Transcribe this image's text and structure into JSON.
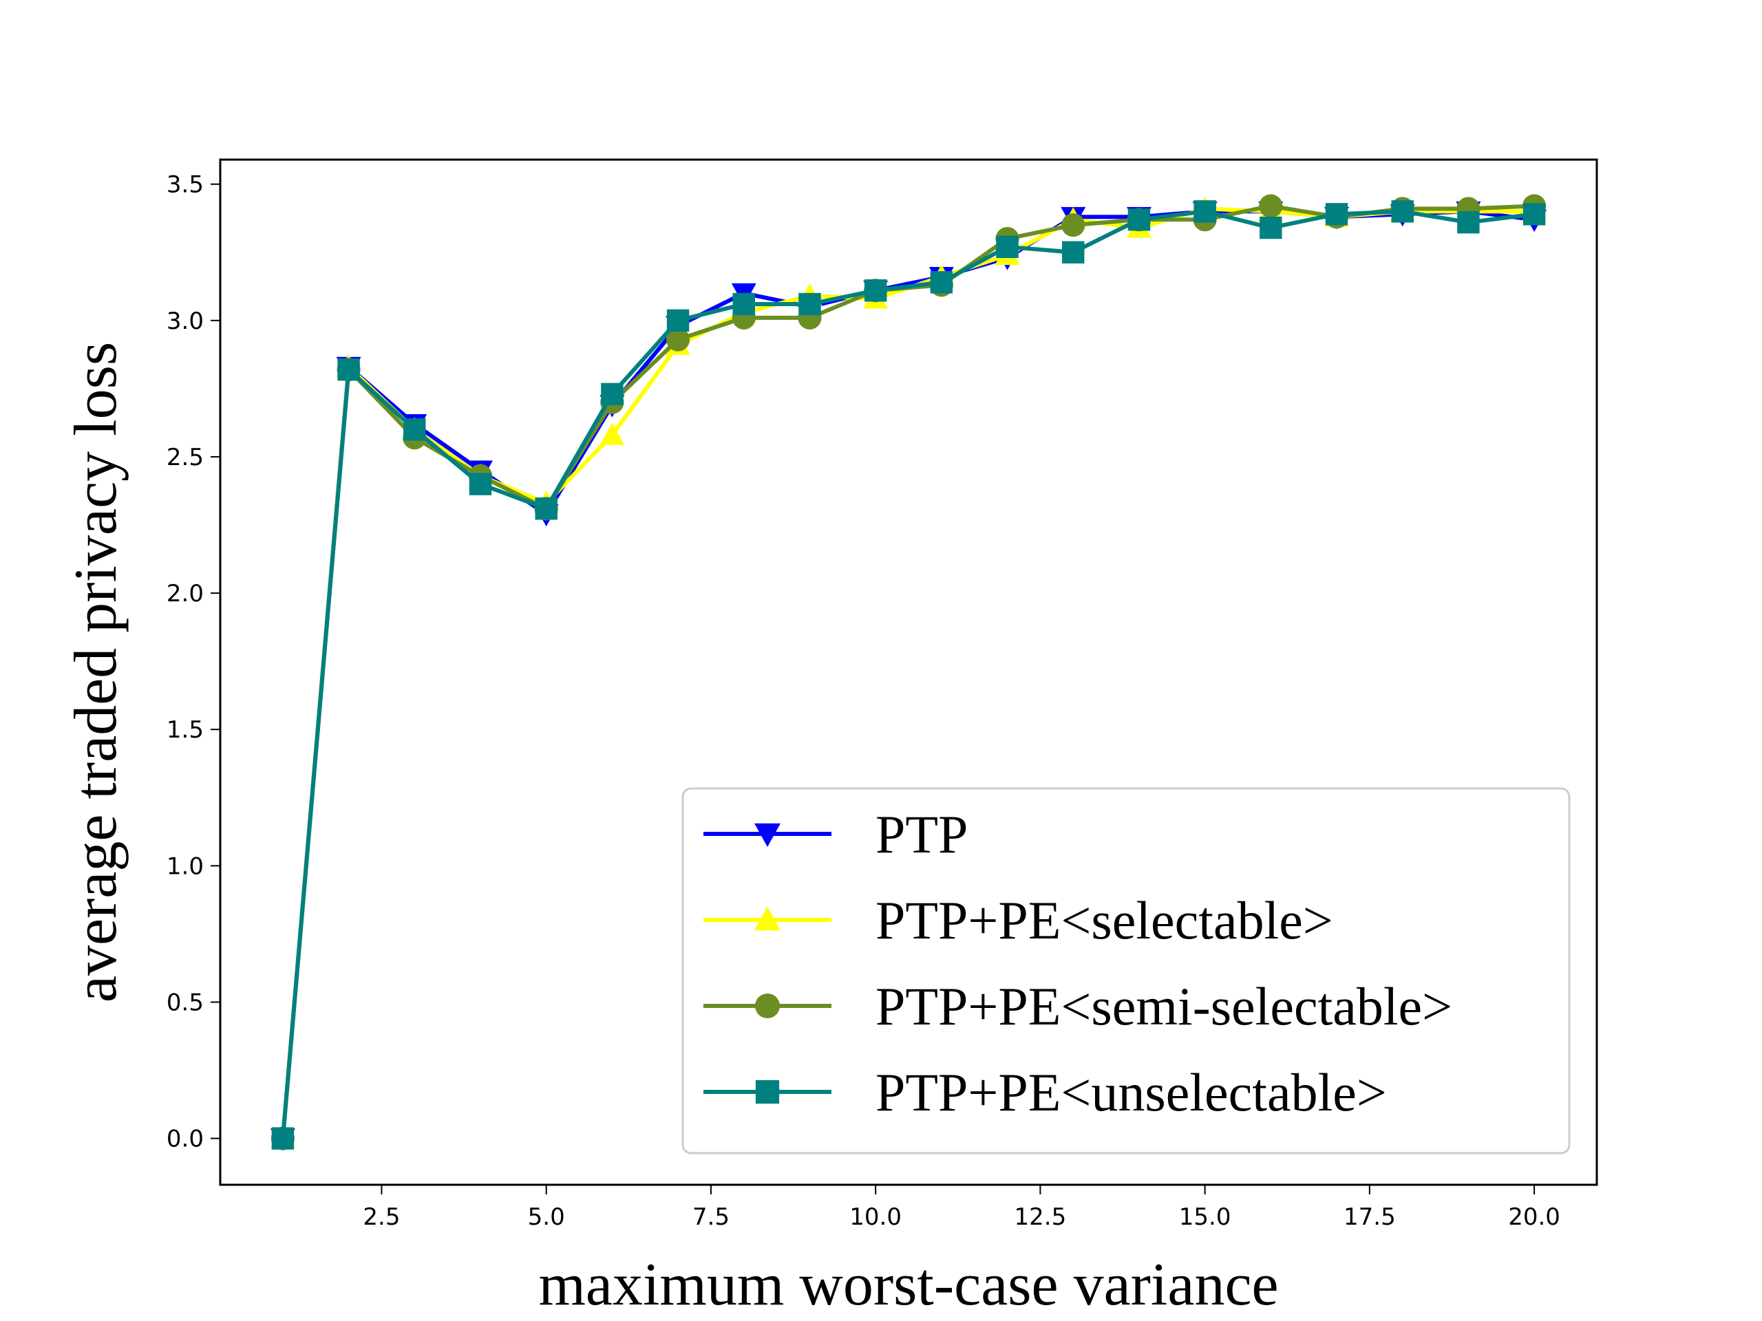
{
  "chart_data": {
    "type": "line",
    "title": "",
    "xlabel": "maximum worst-case variance",
    "ylabel": "average traded privacy loss",
    "xlim": [
      0.05,
      20.95
    ],
    "ylim": [
      -0.17,
      3.59
    ],
    "xticks": [
      2.5,
      5.0,
      7.5,
      10.0,
      12.5,
      15.0,
      17.5,
      20.0
    ],
    "xtick_labels": [
      "2.5",
      "5.0",
      "7.5",
      "10.0",
      "12.5",
      "15.0",
      "17.5",
      "20.0"
    ],
    "yticks": [
      0.0,
      0.5,
      1.0,
      1.5,
      2.0,
      2.5,
      3.0,
      3.5
    ],
    "ytick_labels": [
      "0.0",
      "0.5",
      "1.0",
      "1.5",
      "2.0",
      "2.5",
      "3.0",
      "3.5"
    ],
    "grid": false,
    "legend_position": "lower-right",
    "x": [
      1,
      2,
      3,
      4,
      5,
      6,
      7,
      8,
      9,
      10,
      11,
      12,
      13,
      14,
      15,
      16,
      17,
      18,
      19,
      20
    ],
    "series": [
      {
        "name": "PTP",
        "color": "#0000ff",
        "marker": "triangle-down",
        "values": [
          0.0,
          2.83,
          2.62,
          2.45,
          2.29,
          2.69,
          2.98,
          3.1,
          3.05,
          3.11,
          3.16,
          3.23,
          3.38,
          3.38,
          3.4,
          3.4,
          3.38,
          3.39,
          3.4,
          3.37
        ]
      },
      {
        "name": "PTP+PE<selectable>",
        "color": "#ffff00",
        "marker": "triangle-up",
        "values": [
          0.0,
          2.83,
          2.6,
          2.43,
          2.33,
          2.58,
          2.91,
          3.03,
          3.09,
          3.08,
          3.16,
          3.24,
          3.37,
          3.34,
          3.41,
          3.4,
          3.38,
          3.4,
          3.4,
          3.4
        ]
      },
      {
        "name": "PTP+PE<semi-selectable>",
        "color": "#6b8e23",
        "marker": "circle",
        "values": [
          0.0,
          2.82,
          2.57,
          2.43,
          2.31,
          2.7,
          2.93,
          3.01,
          3.01,
          3.11,
          3.13,
          3.3,
          3.35,
          3.37,
          3.37,
          3.42,
          3.38,
          3.41,
          3.41,
          3.42
        ]
      },
      {
        "name": "PTP+PE<unselectable>",
        "color": "#008080",
        "marker": "square",
        "values": [
          0.0,
          2.82,
          2.6,
          2.4,
          2.31,
          2.73,
          3.0,
          3.06,
          3.06,
          3.11,
          3.14,
          3.27,
          3.25,
          3.37,
          3.4,
          3.34,
          3.39,
          3.4,
          3.36,
          3.39
        ]
      }
    ]
  }
}
